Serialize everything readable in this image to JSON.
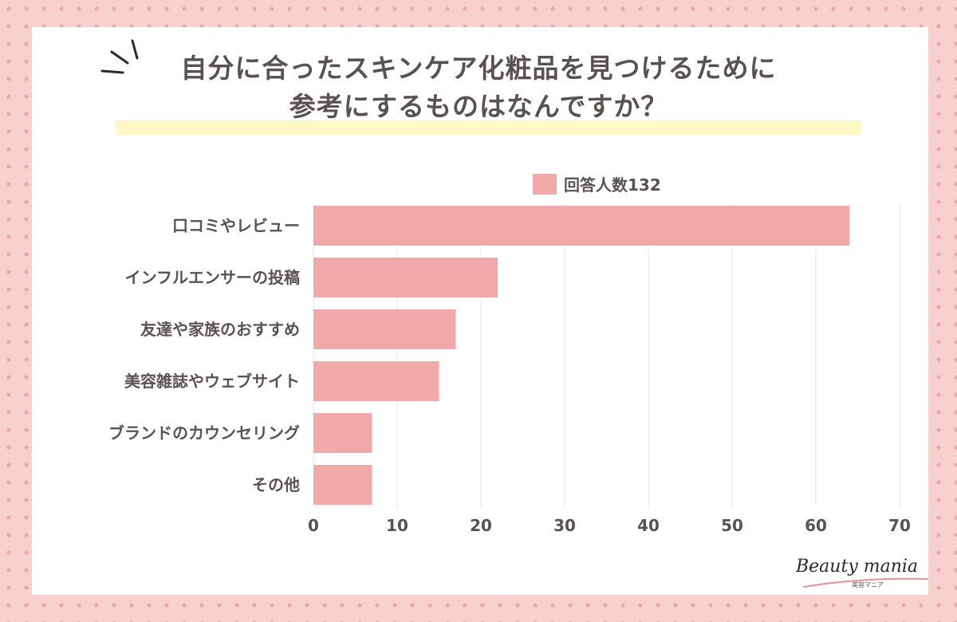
{
  "title": {
    "line1": "自分に合ったスキンケア化粧品を見つけるために",
    "line2": "参考にするものはなんですか？"
  },
  "legend": {
    "label": "回答人数132"
  },
  "logo": {
    "main": "Beauty mania",
    "sub": "美容マニア"
  },
  "colors": {
    "bar": "#f0a8a8",
    "text": "#5a5250",
    "grid": "#e6e6e6",
    "highlight": "#fff7c4"
  },
  "chart_data": {
    "type": "bar",
    "orientation": "horizontal",
    "categories": [
      "口コミやレビュー",
      "インフルエンサーの投稿",
      "友達や家族のおすすめ",
      "美容雑誌やウェブサイト",
      "ブランドのカウンセリング",
      "その他"
    ],
    "series": [
      {
        "name": "回答人数132",
        "values": [
          64,
          22,
          17,
          15,
          7,
          7
        ]
      }
    ],
    "xlim": [
      0,
      70
    ],
    "xticks": [
      "0",
      "10",
      "20",
      "30",
      "40",
      "50",
      "60",
      "70"
    ],
    "grid": true,
    "legend_position": "top"
  }
}
